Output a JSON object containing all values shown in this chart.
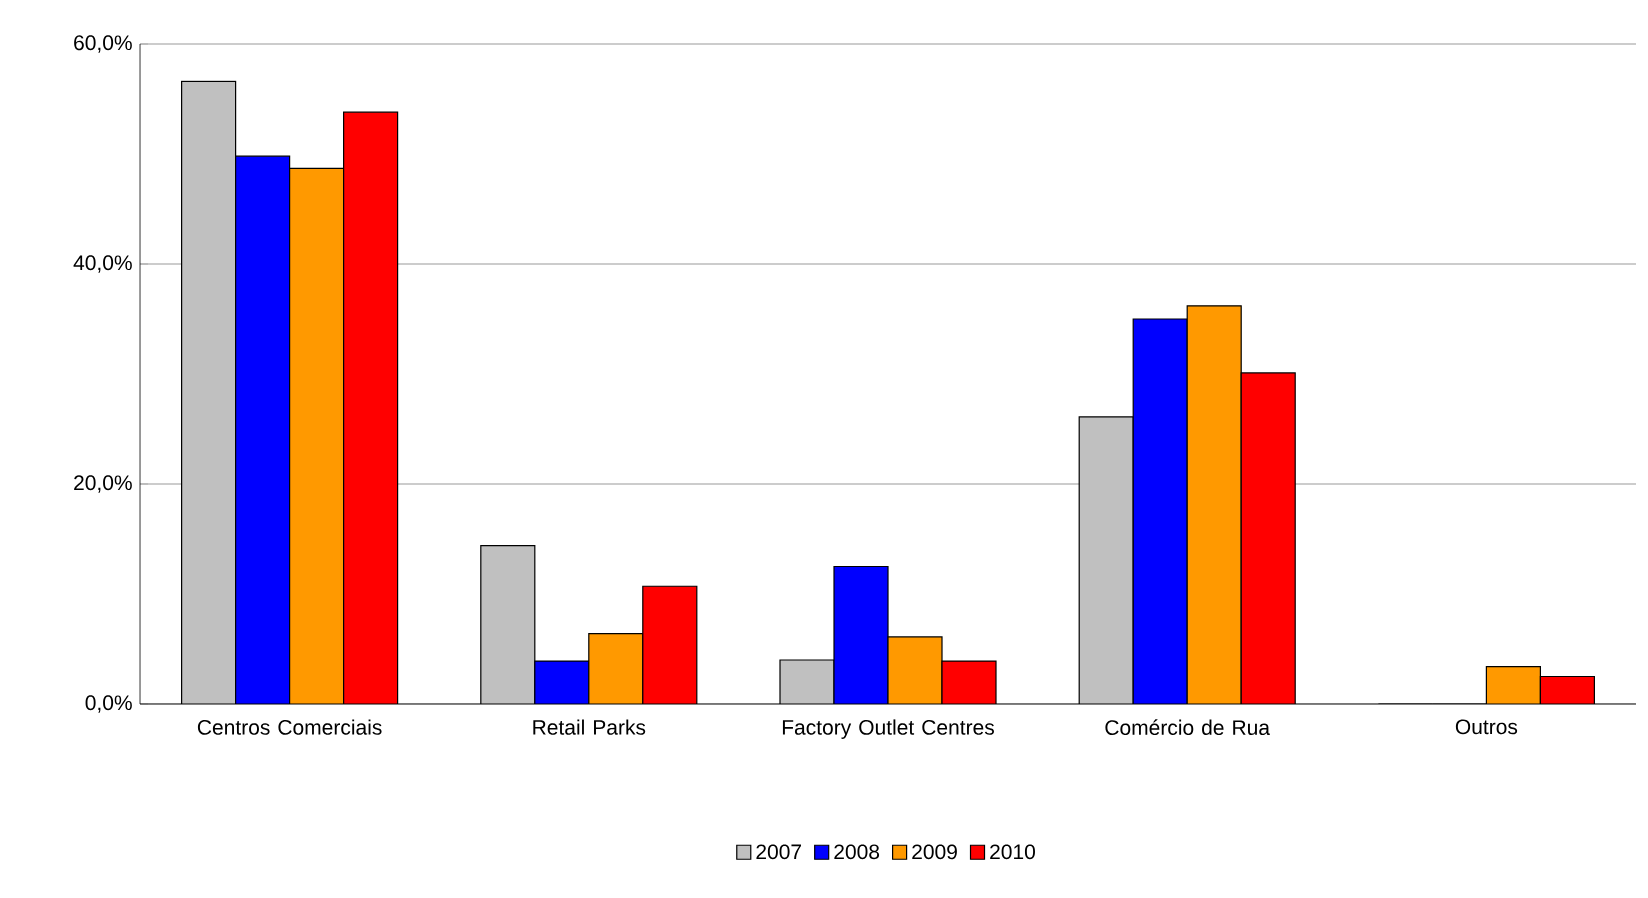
{
  "chart_data": {
    "type": "bar",
    "categories": [
      "Centros Comerciais",
      "Retail Parks",
      "Factory Outlet Centres",
      "Comércio de Rua",
      "Outros"
    ],
    "series": [
      {
        "name": "2007",
        "color": "#c0c0c0",
        "values": [
          56.6,
          14.4,
          4.0,
          26.1,
          0
        ]
      },
      {
        "name": "2008",
        "color": "#0000ff",
        "values": [
          49.8,
          3.9,
          12.5,
          35.0,
          0
        ]
      },
      {
        "name": "2009",
        "color": "#ff9900",
        "values": [
          48.7,
          6.4,
          6.1,
          36.2,
          3.4
        ]
      },
      {
        "name": "2010",
        "color": "#ff0000",
        "values": [
          53.8,
          10.7,
          3.9,
          30.1,
          2.5
        ]
      }
    ],
    "ylim": [
      0,
      60
    ],
    "yticks": [
      {
        "value": 0,
        "label": "0,0%"
      },
      {
        "value": 20,
        "label": "20,0%"
      },
      {
        "value": 40,
        "label": "40,0%"
      },
      {
        "value": 60,
        "label": "60,0%"
      }
    ],
    "grid": "y",
    "legend": "bottom"
  }
}
